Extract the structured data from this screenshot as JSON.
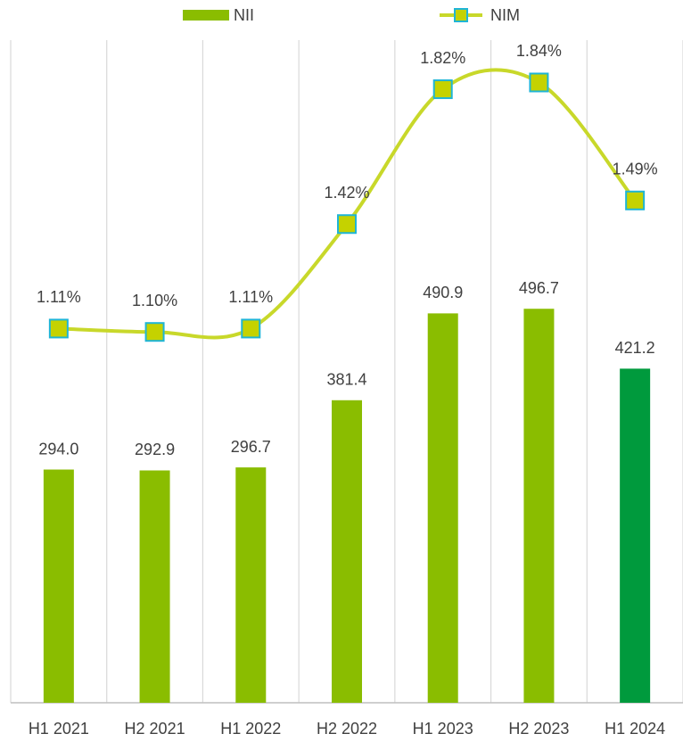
{
  "chart_data": {
    "type": "bar_line",
    "categories": [
      "H1 2021",
      "H2 2021",
      "H1 2022",
      "H2 2022",
      "H1 2023",
      "H2 2023",
      "H1 2024"
    ],
    "series": [
      {
        "name": "NII",
        "type": "bar",
        "color": "#8abd00",
        "point_colors": [
          "#8abd00",
          "#8abd00",
          "#8abd00",
          "#8abd00",
          "#8abd00",
          "#8abd00",
          "#009a3d"
        ],
        "values": [
          294.0,
          292.9,
          296.7,
          381.4,
          490.9,
          496.7,
          421.2
        ],
        "value_labels": [
          "294.0",
          "292.9",
          "296.7",
          "381.4",
          "490.9",
          "496.7",
          "421.2"
        ]
      },
      {
        "name": "NIM",
        "type": "line",
        "axis": "y2",
        "color": "#c8d82a",
        "marker_color": "#c5d200",
        "marker_edge_color": "#1fb5d6",
        "values": [
          1.11,
          1.1,
          1.11,
          1.42,
          1.82,
          1.84,
          1.49
        ],
        "value_labels": [
          "1.11%",
          "1.10%",
          "1.11%",
          "1.42%",
          "1.82%",
          "1.84%",
          "1.49%"
        ]
      }
    ],
    "ylim": [
      0,
      850
    ],
    "y2lim": [
      0,
      2.0
    ],
    "grid": true,
    "legend": "top"
  }
}
